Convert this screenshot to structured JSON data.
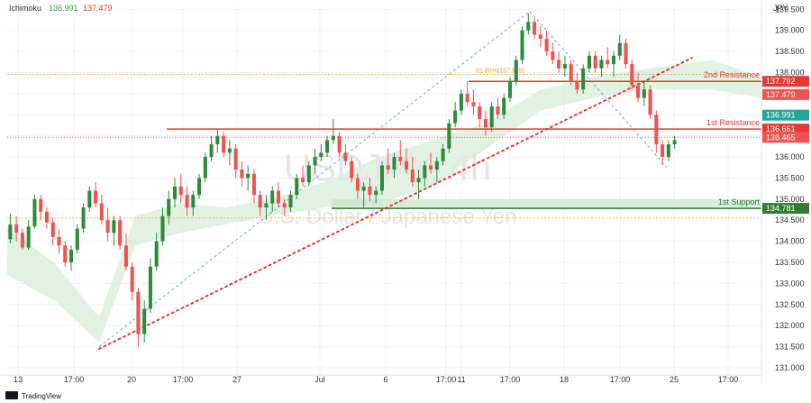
{
  "header": {
    "indicator_name": "Ichimoku",
    "indicator_value_1": "136.991",
    "indicator_value_2": "137.479"
  },
  "currency_label": "JPY",
  "watermark": {
    "symbol": "USDJPY, 4h",
    "name": "U.S. Dollar / Japanese Yen"
  },
  "footer": {
    "brand": "TradingView"
  },
  "colors": {
    "up": "#26a69a",
    "up_body": "#2e8b3d",
    "down": "#ef5350",
    "resistance": "#e53935",
    "support": "#2e7d32",
    "trendline": "#e53935",
    "dashed_blue": "#4a90e2",
    "fib": "#f5a623",
    "cloud": "#cfe9cf",
    "grid": "#f0f3fa"
  },
  "chart_data": {
    "type": "candlestick",
    "ylim": [
      130.85,
      139.55
    ],
    "y_ticks": [
      "139.500",
      "139.000",
      "138.500",
      "138.000",
      "137.500",
      "137.000",
      "136.500",
      "136.000",
      "135.500",
      "135.000",
      "134.500",
      "134.000",
      "133.500",
      "133.000",
      "132.500",
      "132.000",
      "131.500",
      "131.000"
    ],
    "x_ticks": [
      "13",
      "17:00",
      "20",
      "17:00",
      "27",
      "Jul",
      "6",
      "17:00",
      "11",
      "17:00",
      "18",
      "17:00",
      "25",
      "17:00"
    ],
    "candles": [
      [
        134.05,
        134.65,
        133.95,
        134.4
      ],
      [
        134.4,
        134.6,
        134.0,
        134.2
      ],
      [
        134.2,
        134.3,
        133.8,
        133.85
      ],
      [
        133.85,
        134.5,
        133.8,
        134.35
      ],
      [
        134.35,
        135.1,
        134.3,
        135.0
      ],
      [
        135.0,
        135.1,
        134.5,
        134.7
      ],
      [
        134.7,
        134.8,
        134.3,
        134.45
      ],
      [
        134.45,
        134.55,
        133.9,
        134.1
      ],
      [
        134.1,
        134.3,
        133.7,
        133.9
      ],
      [
        133.9,
        134.0,
        133.4,
        133.5
      ],
      [
        133.5,
        133.9,
        133.3,
        133.8
      ],
      [
        133.8,
        134.4,
        133.7,
        134.3
      ],
      [
        134.3,
        134.9,
        134.2,
        134.8
      ],
      [
        134.8,
        135.3,
        134.7,
        135.2
      ],
      [
        135.2,
        135.4,
        134.8,
        134.9
      ],
      [
        134.9,
        135.1,
        134.4,
        134.5
      ],
      [
        134.5,
        134.8,
        134.0,
        134.2
      ],
      [
        134.2,
        134.6,
        133.9,
        134.5
      ],
      [
        134.5,
        134.6,
        133.8,
        133.9
      ],
      [
        133.9,
        134.2,
        133.3,
        133.4
      ],
      [
        133.4,
        133.5,
        132.6,
        132.8
      ],
      [
        132.8,
        132.9,
        131.5,
        131.8
      ],
      [
        131.8,
        132.6,
        131.6,
        132.4
      ],
      [
        132.4,
        133.6,
        132.3,
        133.4
      ],
      [
        133.4,
        134.2,
        133.3,
        134.0
      ],
      [
        134.0,
        134.8,
        133.9,
        134.6
      ],
      [
        134.6,
        135.2,
        134.4,
        135.0
      ],
      [
        135.0,
        135.5,
        134.8,
        135.3
      ],
      [
        135.3,
        135.6,
        134.9,
        135.1
      ],
      [
        135.1,
        135.3,
        134.6,
        134.8
      ],
      [
        134.8,
        135.2,
        134.6,
        135.1
      ],
      [
        135.1,
        135.6,
        135.0,
        135.5
      ],
      [
        135.5,
        136.1,
        135.4,
        136.0
      ],
      [
        136.0,
        136.5,
        135.9,
        136.3
      ],
      [
        136.3,
        136.66,
        136.1,
        136.5
      ],
      [
        136.5,
        136.6,
        136.0,
        136.1
      ],
      [
        136.1,
        136.4,
        135.8,
        136.2
      ],
      [
        136.2,
        136.3,
        135.5,
        135.7
      ],
      [
        135.7,
        135.9,
        135.3,
        135.5
      ],
      [
        135.5,
        135.8,
        135.2,
        135.6
      ],
      [
        135.6,
        135.7,
        134.9,
        135.1
      ],
      [
        135.1,
        135.2,
        134.6,
        134.8
      ],
      [
        134.8,
        135.1,
        134.5,
        134.9
      ],
      [
        134.9,
        135.3,
        134.7,
        135.2
      ],
      [
        135.2,
        135.4,
        134.8,
        134.9
      ],
      [
        134.9,
        135.0,
        134.6,
        134.8
      ],
      [
        134.8,
        135.2,
        134.7,
        135.1
      ],
      [
        135.1,
        135.6,
        135.0,
        135.5
      ],
      [
        135.5,
        135.8,
        135.3,
        135.4
      ],
      [
        135.4,
        135.9,
        135.3,
        135.8
      ],
      [
        135.8,
        136.2,
        135.6,
        136.0
      ],
      [
        136.0,
        136.3,
        135.9,
        136.1
      ],
      [
        136.1,
        136.5,
        136.0,
        136.4
      ],
      [
        136.4,
        136.9,
        136.3,
        136.5
      ],
      [
        136.5,
        136.6,
        136.0,
        136.1
      ],
      [
        136.1,
        136.3,
        135.8,
        135.9
      ],
      [
        135.9,
        136.0,
        135.4,
        135.5
      ],
      [
        135.5,
        135.6,
        135.0,
        135.2
      ],
      [
        135.2,
        135.4,
        134.8,
        135.3
      ],
      [
        135.3,
        135.5,
        134.95,
        135.1
      ],
      [
        135.1,
        135.3,
        134.9,
        135.2
      ],
      [
        135.2,
        135.9,
        135.1,
        135.8
      ],
      [
        135.8,
        136.2,
        135.6,
        135.7
      ],
      [
        135.7,
        136.1,
        135.5,
        136.0
      ],
      [
        136.0,
        136.4,
        135.8,
        135.9
      ],
      [
        135.9,
        136.2,
        135.6,
        135.7
      ],
      [
        135.7,
        136.0,
        135.3,
        135.4
      ],
      [
        135.4,
        135.7,
        135.0,
        135.5
      ],
      [
        135.5,
        135.9,
        135.3,
        135.8
      ],
      [
        135.8,
        136.1,
        135.6,
        135.7
      ],
      [
        135.7,
        136.0,
        135.4,
        135.9
      ],
      [
        135.9,
        136.3,
        135.8,
        136.2
      ],
      [
        136.2,
        136.9,
        136.1,
        136.8
      ],
      [
        136.8,
        137.3,
        136.7,
        137.1
      ],
      [
        137.1,
        137.6,
        137.0,
        137.5
      ],
      [
        137.5,
        137.8,
        137.2,
        137.3
      ],
      [
        137.3,
        137.6,
        137.0,
        137.2
      ],
      [
        137.2,
        137.3,
        136.7,
        136.9
      ],
      [
        136.9,
        137.1,
        136.5,
        136.7
      ],
      [
        136.7,
        137.3,
        136.6,
        137.2
      ],
      [
        137.2,
        137.4,
        136.9,
        137.0
      ],
      [
        137.0,
        137.5,
        136.9,
        137.4
      ],
      [
        137.4,
        137.9,
        137.3,
        137.8
      ],
      [
        137.8,
        138.4,
        137.7,
        138.3
      ],
      [
        138.3,
        139.1,
        138.2,
        139.0
      ],
      [
        139.0,
        139.4,
        138.9,
        139.2
      ],
      [
        139.2,
        139.3,
        138.8,
        138.9
      ],
      [
        138.9,
        139.1,
        138.6,
        138.8
      ],
      [
        138.8,
        139.0,
        138.4,
        138.5
      ],
      [
        138.5,
        138.7,
        138.2,
        138.3
      ],
      [
        138.3,
        138.5,
        138.0,
        138.1
      ],
      [
        138.1,
        138.4,
        137.9,
        138.2
      ],
      [
        138.2,
        138.3,
        137.7,
        137.8
      ],
      [
        137.8,
        138.0,
        137.5,
        137.6
      ],
      [
        137.6,
        138.2,
        137.5,
        138.1
      ],
      [
        138.1,
        138.5,
        138.0,
        138.4
      ],
      [
        138.4,
        138.5,
        138.0,
        138.1
      ],
      [
        138.1,
        138.4,
        137.9,
        138.3
      ],
      [
        138.3,
        138.6,
        138.1,
        138.2
      ],
      [
        138.2,
        138.5,
        137.9,
        138.4
      ],
      [
        138.4,
        138.9,
        138.3,
        138.7
      ],
      [
        138.7,
        138.8,
        138.1,
        138.2
      ],
      [
        138.2,
        138.3,
        137.6,
        137.7
      ],
      [
        137.7,
        138.0,
        137.3,
        137.4
      ],
      [
        137.4,
        137.8,
        137.2,
        137.6
      ],
      [
        137.6,
        137.7,
        136.9,
        137.0
      ],
      [
        137.0,
        137.1,
        136.1,
        136.3
      ],
      [
        136.3,
        136.4,
        135.8,
        136.0
      ],
      [
        136.0,
        136.4,
        135.9,
        136.3
      ],
      [
        136.3,
        136.5,
        136.2,
        136.4
      ]
    ],
    "levels": [
      {
        "name": "2nd Resistance",
        "value": 137.792,
        "label": "137.792"
      },
      {
        "name": "1st Resistance",
        "value": 136.661,
        "label": "136.661"
      },
      {
        "name": "1st Support",
        "value": 134.781,
        "label": "134.781"
      }
    ],
    "price_tags": [
      {
        "value": 137.479,
        "label": "137.479"
      },
      {
        "value": 136.991,
        "label": "136.991"
      },
      {
        "value": 136.465,
        "label": "136.465"
      }
    ],
    "fib_label": "61.80%(137.959)",
    "fib_label_2": "61.80%(134.55)",
    "annotations": [
      "2nd Resistance",
      "1st Resistance",
      "1st Support"
    ]
  }
}
